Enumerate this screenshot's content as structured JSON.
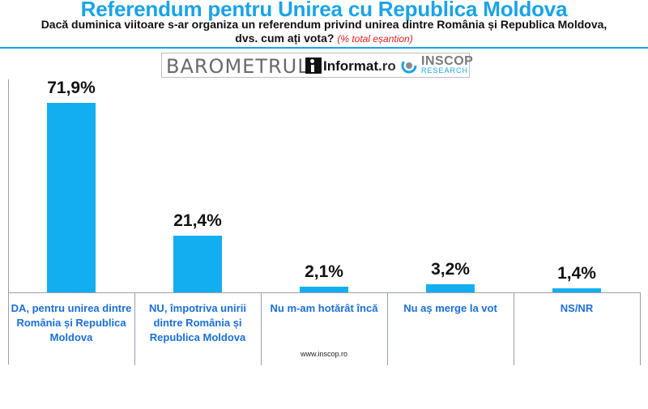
{
  "header": {
    "title": "Referendum pentru Unirea cu Republica Moldova",
    "question": "Dacă duminica viitoare s-ar organiza un referendum privind unirea dintre România și Republica Moldova, dvs. cum ați vota?",
    "note": "(% total eșantion)"
  },
  "logos": {
    "barometrul": "BAROMETRUL",
    "informat": "Informat",
    "informat_ro": ".ro",
    "inscop": "INSCOP",
    "research": "RESEARCH"
  },
  "colors": {
    "bar": "#12aef0",
    "title": "#1aa3e8",
    "category": "#1a6fd8",
    "note": "#e02020"
  },
  "footer": {
    "website": "www.inscop.ro"
  },
  "chart_data": {
    "type": "bar",
    "title": "Referendum pentru Unirea cu Republica Moldova",
    "categories": [
      "DA, pentru unirea dintre România și Republica Moldova",
      "NU, împotriva unirii dintre România și Republica Moldova",
      "Nu m-am hotărât încă",
      "Nu aș merge la vot",
      "NS/NR"
    ],
    "values": [
      71.9,
      21.4,
      2.1,
      3.2,
      1.4
    ],
    "labels": [
      "71,9%",
      "21,4%",
      "2,1%",
      "3,2%",
      "1,4%"
    ],
    "unit": "%",
    "ylim": [
      0,
      80
    ],
    "grid": false,
    "legend": "none"
  }
}
